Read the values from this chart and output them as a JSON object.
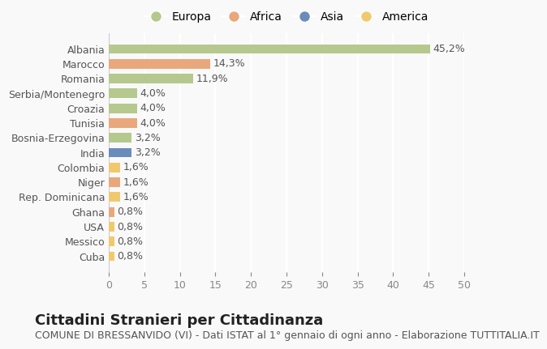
{
  "categories": [
    "Albania",
    "Marocco",
    "Romania",
    "Serbia/Montenegro",
    "Croazia",
    "Tunisia",
    "Bosnia-Erzegovina",
    "India",
    "Colombia",
    "Niger",
    "Rep. Dominicana",
    "Ghana",
    "USA",
    "Messico",
    "Cuba"
  ],
  "values": [
    45.2,
    14.3,
    11.9,
    4.0,
    4.0,
    4.0,
    3.2,
    3.2,
    1.6,
    1.6,
    1.6,
    0.8,
    0.8,
    0.8,
    0.8
  ],
  "labels": [
    "45,2%",
    "14,3%",
    "11,9%",
    "4,0%",
    "4,0%",
    "4,0%",
    "3,2%",
    "3,2%",
    "1,6%",
    "1,6%",
    "1,6%",
    "0,8%",
    "0,8%",
    "0,8%",
    "0,8%"
  ],
  "colors": [
    "#b5c98e",
    "#e8a87c",
    "#b5c98e",
    "#b5c98e",
    "#b5c98e",
    "#e8a87c",
    "#b5c98e",
    "#6b8cba",
    "#f0c96e",
    "#e8a87c",
    "#f0c96e",
    "#e8a87c",
    "#f0c96e",
    "#f0c96e",
    "#f0c96e"
  ],
  "continents": [
    "Europa",
    "Africa",
    "Asia",
    "America"
  ],
  "legend_colors": [
    "#b5c98e",
    "#e8a87c",
    "#6b8cba",
    "#f0c96e"
  ],
  "title": "Cittadini Stranieri per Cittadinanza",
  "subtitle": "COMUNE DI BRESSANVIDO (VI) - Dati ISTAT al 1° gennaio di ogni anno - Elaborazione TUTTITALIA.IT",
  "xlim": [
    0,
    50
  ],
  "xticks": [
    0,
    5,
    10,
    15,
    20,
    25,
    30,
    35,
    40,
    45,
    50
  ],
  "bg_color": "#f9f9f9",
  "grid_color": "#ffffff",
  "bar_height": 0.65,
  "title_fontsize": 13,
  "subtitle_fontsize": 9,
  "label_fontsize": 9,
  "tick_fontsize": 9,
  "legend_fontsize": 10
}
